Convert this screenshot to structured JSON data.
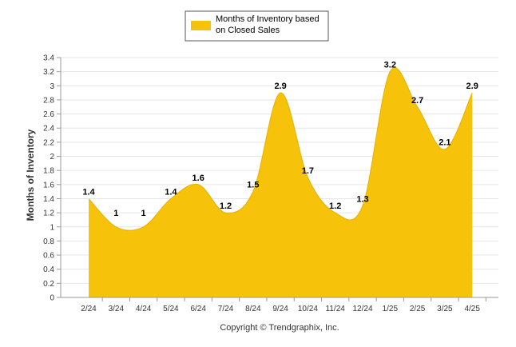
{
  "chart_data": {
    "type": "area",
    "categories": [
      "2/24",
      "3/24",
      "4/24",
      "5/24",
      "6/24",
      "7/24",
      "8/24",
      "9/24",
      "10/24",
      "11/24",
      "12/24",
      "1/25",
      "2/25",
      "3/25",
      "4/25"
    ],
    "series": [
      {
        "name": "Months of Inventory based on Closed Sales",
        "values": [
          1.4,
          1,
          1,
          1.4,
          1.6,
          1.2,
          1.5,
          2.9,
          1.7,
          1.2,
          1.3,
          3.2,
          2.7,
          2.1,
          2.9
        ],
        "color": "#F7C30A"
      }
    ],
    "title": "",
    "xlabel": "",
    "ylabel": "Months of Inventory",
    "ylim": [
      0,
      3.4
    ],
    "yticks": [
      "0",
      "0.2",
      "0.4",
      "0.6",
      "0.8",
      "1",
      "1.2",
      "1.4",
      "1.6",
      "1.8",
      "2",
      "2.2",
      "2.4",
      "2.6",
      "2.8",
      "3",
      "3.2",
      "3.4"
    ],
    "grid": true,
    "legend": "top-center",
    "legend_lines": [
      "Months of Inventory based",
      "on Closed Sales"
    ],
    "footer": "Copyright © Trendgraphix, Inc."
  }
}
